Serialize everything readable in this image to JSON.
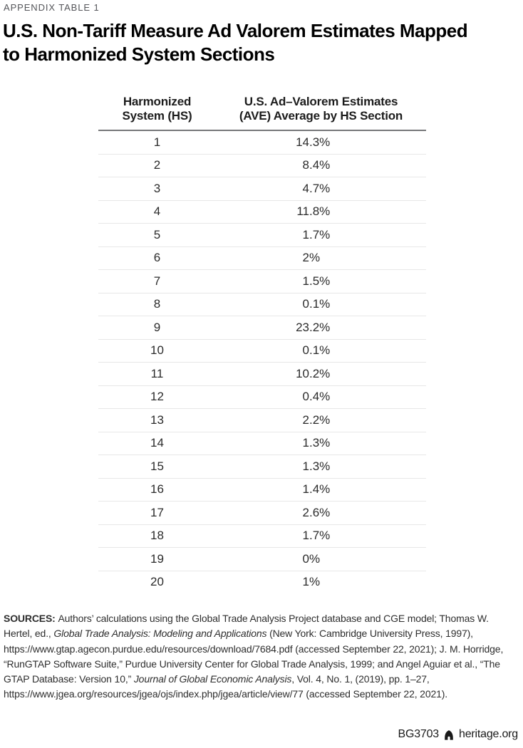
{
  "page": {
    "appendix_label": "APPENDIX TABLE 1",
    "title_line1": "U.S. Non-Tariff Measure Ad Valorem Estimates Mapped",
    "title_line2": "to Harmonized System Sections"
  },
  "table": {
    "headers": {
      "col1_line1": "Harmonized",
      "col1_line2": "System (HS)",
      "col2_line1": "U.S. Ad–Valorem Estimates",
      "col2_line2": "(AVE) Average by HS Section"
    },
    "rows": [
      {
        "hs": "1",
        "ave": "14.3%"
      },
      {
        "hs": "2",
        "ave": "8.4%"
      },
      {
        "hs": "3",
        "ave": "4.7%"
      },
      {
        "hs": "4",
        "ave": "11.8%"
      },
      {
        "hs": "5",
        "ave": "1.7%"
      },
      {
        "hs": "6",
        "ave": "2%"
      },
      {
        "hs": "7",
        "ave": "1.5%"
      },
      {
        "hs": "8",
        "ave": "0.1%"
      },
      {
        "hs": "9",
        "ave": "23.2%"
      },
      {
        "hs": "10",
        "ave": "0.1%"
      },
      {
        "hs": "11",
        "ave": "10.2%"
      },
      {
        "hs": "12",
        "ave": "0.4%"
      },
      {
        "hs": "13",
        "ave": "2.2%"
      },
      {
        "hs": "14",
        "ave": "1.3%"
      },
      {
        "hs": "15",
        "ave": "1.3%"
      },
      {
        "hs": "16",
        "ave": "1.4%"
      },
      {
        "hs": "17",
        "ave": "2.6%"
      },
      {
        "hs": "18",
        "ave": "1.7%"
      },
      {
        "hs": "19",
        "ave": "0%"
      },
      {
        "hs": "20",
        "ave": "1%"
      }
    ]
  },
  "sources": {
    "segments": [
      {
        "style": "bold",
        "text": "SOURCES: "
      },
      {
        "style": "normal",
        "text": "Authors’ calculations using the Global Trade Analysis Project database and CGE model; Thomas W. Hertel, ed., "
      },
      {
        "style": "italic",
        "text": "Global Trade Analysis: Modeling and Applications"
      },
      {
        "style": "normal",
        "text": " (New York: Cambridge University Press, 1997), https://www.gtap.agecon.purdue.edu/resources/download/7684.pdf (accessed September 22, 2021); J. M. Horridge, “RunGTAP Software Suite,” Purdue University Center for Global Trade Analysis, 1999; and Angel Aguiar et al., “The GTAP Database: Version 10,” "
      },
      {
        "style": "italic",
        "text": "Journal of Global Economic Analysis"
      },
      {
        "style": "normal",
        "text": ", Vol. 4, No. 1, (2019), pp. 1–27, https://www.jgea.org/resources/jgea/ojs/index.php/jgea/article/view/77 (accessed September 22, 2021)."
      }
    ]
  },
  "footer": {
    "doc_id": "BG3703",
    "site": "heritage.org",
    "bell_icon": "heritage-bell-icon"
  },
  "colors": {
    "title_text": "#000000",
    "label_gray": "#55565a",
    "header_rule": "#76777a",
    "row_line": "#e7e7e7",
    "body_text": "#2b2b2b"
  },
  "chart_data": {
    "type": "table",
    "title": "U.S. Non-Tariff Measure Ad Valorem Estimates Mapped to Harmonized System Sections",
    "columns": [
      "Harmonized System (HS)",
      "U.S. Ad–Valorem Estimates (AVE) Average by HS Section"
    ],
    "categories": [
      "1",
      "2",
      "3",
      "4",
      "5",
      "6",
      "7",
      "8",
      "9",
      "10",
      "11",
      "12",
      "13",
      "14",
      "15",
      "16",
      "17",
      "18",
      "19",
      "20"
    ],
    "values": [
      14.3,
      8.4,
      4.7,
      11.8,
      1.7,
      2,
      1.5,
      0.1,
      23.2,
      0.1,
      10.2,
      0.4,
      2.2,
      1.3,
      1.3,
      1.4,
      2.6,
      1.7,
      0,
      1
    ],
    "value_unit": "%"
  }
}
